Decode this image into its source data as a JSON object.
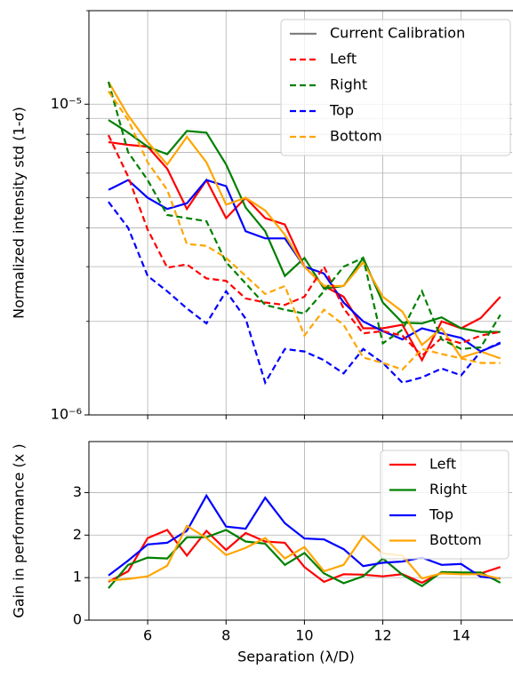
{
  "chart_data": [
    {
      "type": "line",
      "ylabel": "Normalized intensity std (1-σ)",
      "log": true,
      "grid": true,
      "legend": "upper right",
      "show_xtick_labels": false,
      "calibration_label": "Current Calibration",
      "calibration_color": "#808080",
      "x": [
        5,
        5.5,
        6,
        6.5,
        7,
        7.5,
        8,
        8.5,
        9,
        9.5,
        10,
        10.5,
        11,
        11.5,
        12,
        12.5,
        13,
        13.5,
        14,
        14.5,
        15
      ],
      "xlim": [
        4.5,
        15.3
      ],
      "xticks": [
        6,
        8,
        10,
        12,
        14
      ],
      "ylim": [
        1e-06,
        2e-05
      ],
      "yticks": [
        {
          "value": 1e-06,
          "label": "10⁻⁶"
        },
        {
          "value": 1e-05,
          "label": "10⁻⁵"
        }
      ],
      "yminorticks": [
        2e-06,
        3e-06,
        4e-06,
        5e-06,
        6e-06,
        7e-06,
        8e-06,
        9e-06,
        2e-05
      ],
      "series": [
        {
          "color": "#ff0000",
          "dash": false,
          "values": [
            7.55e-06,
            7.4e-06,
            7.3e-06,
            6.2e-06,
            4.6e-06,
            5.7e-06,
            4.3e-06,
            5e-06,
            4.3e-06,
            4.1e-06,
            3e-06,
            2.6e-06,
            2.4e-06,
            1.9e-06,
            1.9e-06,
            1.95e-06,
            1.5e-06,
            2e-06,
            1.9e-06,
            2.05e-06,
            2.4e-06
          ]
        },
        {
          "color": "#008000",
          "dash": false,
          "values": [
            8.9e-06,
            8.1e-06,
            7.3e-06,
            6.9e-06,
            8.2e-06,
            8.1e-06,
            6.4e-06,
            4.65e-06,
            3.9e-06,
            2.8e-06,
            3.2e-06,
            2.55e-06,
            2.6e-06,
            3.2e-06,
            2.3e-06,
            1.98e-06,
            1.97e-06,
            2.06e-06,
            1.9e-06,
            1.85e-06,
            1.85e-06
          ]
        },
        {
          "color": "#0000ff",
          "dash": false,
          "values": [
            5.3e-06,
            5.7e-06,
            5e-06,
            4.6e-06,
            4.8e-06,
            5.7e-06,
            5.45e-06,
            3.9e-06,
            3.7e-06,
            3.7e-06,
            3e-06,
            2.85e-06,
            2.3e-06,
            2e-06,
            1.86e-06,
            1.75e-06,
            1.9e-06,
            1.83e-06,
            1.77e-06,
            1.6e-06,
            1.7e-06
          ]
        },
        {
          "color": "#ffa500",
          "dash": false,
          "values": [
            1.18e-05,
            9.2e-06,
            7.55e-06,
            6.4e-06,
            7.85e-06,
            6.5e-06,
            4.75e-06,
            5e-06,
            4.55e-06,
            3.8e-06,
            3e-06,
            2.6e-06,
            2.6e-06,
            3.1e-06,
            2.4e-06,
            2.15e-06,
            1.68e-06,
            1.9e-06,
            1.53e-06,
            1.6e-06,
            1.52e-06
          ]
        },
        {
          "name": "Left",
          "color": "#ff0000",
          "dash": true,
          "values": [
            7.95e-06,
            5.85e-06,
            3.95e-06,
            2.98e-06,
            3.05e-06,
            2.75e-06,
            2.7e-06,
            2.37e-06,
            2.3e-06,
            2.26e-06,
            2.4e-06,
            3e-06,
            2.2e-06,
            1.83e-06,
            1.86e-06,
            1.8e-06,
            1.55e-06,
            1.77e-06,
            1.7e-06,
            1.8e-06,
            1.85e-06
          ]
        },
        {
          "name": "Right",
          "color": "#008000",
          "dash": true,
          "values": [
            1.18e-05,
            7e-06,
            5.7e-06,
            4.4e-06,
            4.3e-06,
            4.2e-06,
            3.1e-06,
            2.65e-06,
            2.26e-06,
            2.18e-06,
            2.12e-06,
            2.5e-06,
            3e-06,
            3.2e-06,
            1.7e-06,
            1.88e-06,
            2.5e-06,
            1.75e-06,
            1.63e-06,
            1.65e-06,
            2.1e-06
          ]
        },
        {
          "name": "Top",
          "color": "#0000ff",
          "dash": true,
          "values": [
            4.85e-06,
            4e-06,
            2.8e-06,
            2.5e-06,
            2.2e-06,
            1.97e-06,
            2.5e-06,
            2.04e-06,
            1.27e-06,
            1.63e-06,
            1.6e-06,
            1.5e-06,
            1.36e-06,
            1.63e-06,
            1.47e-06,
            1.27e-06,
            1.32e-06,
            1.41e-06,
            1.34e-06,
            1.6e-06,
            1.71e-06
          ]
        },
        {
          "name": "Bottom",
          "color": "#ffa500",
          "dash": true,
          "values": [
            1.1e-05,
            8.9e-06,
            6.5e-06,
            5.3e-06,
            3.55e-06,
            3.5e-06,
            3.2e-06,
            2.8e-06,
            2.45e-06,
            2.6e-06,
            1.8e-06,
            2.18e-06,
            1.95e-06,
            1.53e-06,
            1.47e-06,
            1.4e-06,
            1.63e-06,
            1.57e-06,
            1.52e-06,
            1.47e-06,
            1.47e-06
          ]
        }
      ]
    },
    {
      "type": "line",
      "ylabel": "Gain in performance (x )",
      "xlabel": "Separation (λ/D)",
      "grid": true,
      "legend": "upper right",
      "show_xtick_labels": true,
      "x": [
        5,
        5.5,
        6,
        6.5,
        7,
        7.5,
        8,
        8.5,
        9,
        9.5,
        10,
        10.5,
        11,
        11.5,
        12,
        12.5,
        13,
        13.5,
        14,
        14.5,
        15
      ],
      "xlim": [
        4.5,
        15.3
      ],
      "xticks": [
        6,
        8,
        10,
        12,
        14
      ],
      "ylim": [
        0,
        4.2
      ],
      "yticks": [
        0,
        1,
        2,
        3
      ],
      "series": [
        {
          "name": "Left",
          "color": "#ff0000",
          "dash": false,
          "values": [
            0.9,
            1.15,
            1.93,
            2.12,
            1.52,
            2.1,
            1.65,
            2.05,
            1.85,
            1.82,
            1.25,
            0.9,
            1.08,
            1.07,
            1.03,
            1.08,
            0.88,
            1.12,
            1.1,
            1.1,
            1.25
          ]
        },
        {
          "name": "Right",
          "color": "#008000",
          "dash": false,
          "values": [
            0.75,
            1.3,
            1.47,
            1.45,
            1.95,
            1.95,
            2.12,
            1.85,
            1.8,
            1.3,
            1.58,
            1.1,
            0.87,
            1.03,
            1.45,
            1.07,
            0.8,
            1.13,
            1.12,
            1.12,
            0.88
          ]
        },
        {
          "name": "Top",
          "color": "#0000ff",
          "dash": false,
          "values": [
            1.05,
            1.4,
            1.78,
            1.82,
            2.1,
            2.93,
            2.2,
            2.15,
            2.88,
            2.28,
            1.92,
            1.9,
            1.67,
            1.27,
            1.35,
            1.38,
            1.47,
            1.3,
            1.32,
            1.02,
            0.98
          ]
        },
        {
          "name": "Bottom",
          "color": "#ffa500",
          "dash": false,
          "values": [
            0.93,
            0.97,
            1.03,
            1.28,
            2.22,
            1.93,
            1.53,
            1.7,
            1.93,
            1.45,
            1.72,
            1.15,
            1.3,
            1.98,
            1.57,
            1.52,
            0.98,
            1.1,
            1.08,
            1.08,
            0.97
          ]
        }
      ]
    }
  ]
}
